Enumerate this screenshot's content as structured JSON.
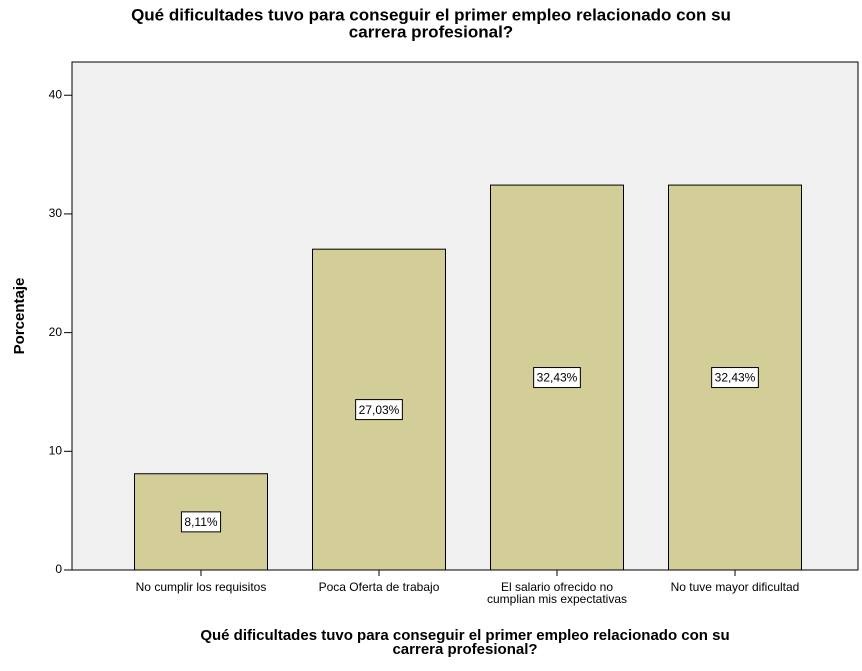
{
  "chart_data": {
    "type": "bar",
    "title": [
      "Qué dificultades tuvo para conseguir el primer empleo relacionado con su",
      "carrera profesional?"
    ],
    "x_label": [
      "Qué dificultades tuvo para conseguir el primer empleo relacionado con su",
      "carrera profesional?"
    ],
    "y_label": "Porcentaje",
    "categories": [
      [
        "No cumplir los requisitos"
      ],
      [
        "Poca Oferta de trabajo"
      ],
      [
        "El salario ofrecido no",
        "cumplian mis expectativas"
      ],
      [
        "No tuve mayor dificultad"
      ]
    ],
    "values": [
      8.11,
      27.03,
      32.43,
      32.43
    ],
    "value_labels": [
      "8,11%",
      "27,03%",
      "32,43%",
      "32,43%"
    ],
    "color": "#d3ce97",
    "ylim": [
      0,
      42.8
    ],
    "yticks": [
      0,
      10,
      20,
      30,
      40
    ]
  }
}
